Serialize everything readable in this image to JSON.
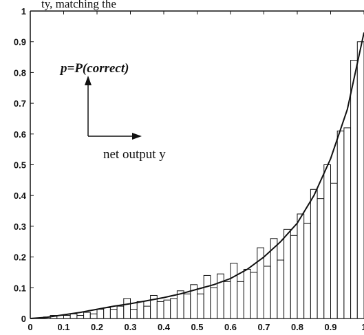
{
  "header_fragment": "ty, matching the",
  "chart_data": {
    "type": "bar",
    "title": "",
    "xlabel": "",
    "ylabel": "",
    "xlim": [
      0,
      1
    ],
    "ylim": [
      0,
      1
    ],
    "xticks": [
      "0",
      "0.1",
      "0.2",
      "0.3",
      "0.4",
      "0.5",
      "0.6",
      "0.7",
      "0.8",
      "0.9",
      "1"
    ],
    "yticks": [
      "0",
      "0.1",
      "0.2",
      "0.3",
      "0.4",
      "0.5",
      "0.6",
      "0.7",
      "0.8",
      "0.9",
      "1"
    ],
    "grid": false,
    "bin_width": 0.02,
    "series": [
      {
        "type": "histogram",
        "bin_starts": [
          0.0,
          0.02,
          0.04,
          0.06,
          0.08,
          0.1,
          0.12,
          0.14,
          0.16,
          0.18,
          0.2,
          0.22,
          0.24,
          0.26,
          0.28,
          0.3,
          0.32,
          0.34,
          0.36,
          0.38,
          0.4,
          0.42,
          0.44,
          0.46,
          0.48,
          0.5,
          0.52,
          0.54,
          0.56,
          0.58,
          0.6,
          0.62,
          0.64,
          0.66,
          0.68,
          0.7,
          0.72,
          0.74,
          0.76,
          0.78,
          0.8,
          0.82,
          0.84,
          0.86,
          0.88,
          0.9,
          0.92,
          0.94,
          0.96,
          0.98
        ],
        "values": [
          0.0,
          0.0,
          0.005,
          0.01,
          0.01,
          0.01,
          0.015,
          0.01,
          0.02,
          0.015,
          0.03,
          0.035,
          0.03,
          0.04,
          0.065,
          0.03,
          0.055,
          0.04,
          0.075,
          0.055,
          0.06,
          0.065,
          0.09,
          0.08,
          0.11,
          0.08,
          0.14,
          0.1,
          0.145,
          0.12,
          0.18,
          0.12,
          0.16,
          0.15,
          0.23,
          0.17,
          0.26,
          0.19,
          0.29,
          0.27,
          0.34,
          0.31,
          0.42,
          0.39,
          0.5,
          0.44,
          0.61,
          0.62,
          0.84,
          0.9
        ]
      },
      {
        "type": "line",
        "x": [
          0.0,
          0.05,
          0.1,
          0.15,
          0.2,
          0.25,
          0.3,
          0.35,
          0.4,
          0.45,
          0.5,
          0.55,
          0.6,
          0.65,
          0.7,
          0.75,
          0.8,
          0.85,
          0.9,
          0.95,
          1.0
        ],
        "y": [
          0.0,
          0.004,
          0.012,
          0.02,
          0.03,
          0.04,
          0.048,
          0.058,
          0.068,
          0.08,
          0.095,
          0.11,
          0.13,
          0.16,
          0.2,
          0.25,
          0.31,
          0.4,
          0.52,
          0.68,
          0.93
        ]
      }
    ],
    "annotation": {
      "y_label": "p=P(correct)",
      "x_label": "net output y"
    }
  }
}
